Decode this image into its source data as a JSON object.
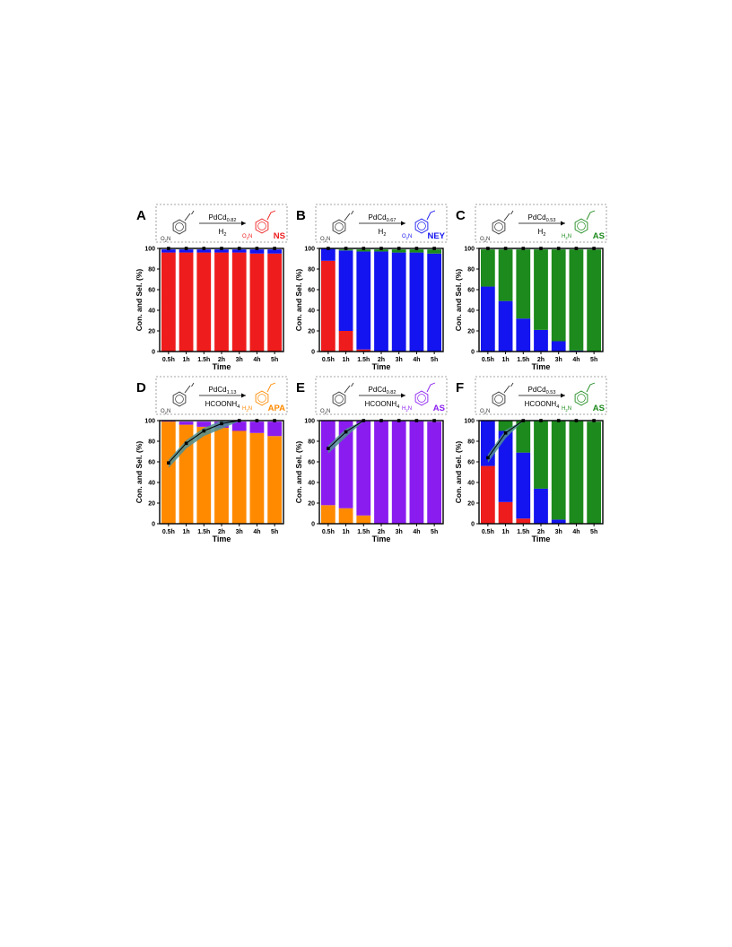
{
  "colors": {
    "red": "#ee1c1c",
    "blue": "#1414f0",
    "green": "#1c8a1c",
    "orange": "#ff8a00",
    "purple": "#8a1cf0",
    "band": "#4f8f92",
    "axis": "#000000",
    "box_border": "#888888"
  },
  "chart_data": [
    {
      "panel": "A",
      "type": "bar",
      "stacked": true,
      "categories": [
        "0.5h",
        "1h",
        "1.5h",
        "2h",
        "3h",
        "4h",
        "5h"
      ],
      "xlabel": "Time",
      "ylabel": "Con. and Sel. (%)",
      "ylim": [
        0,
        100
      ],
      "yticks": [
        "0",
        "20",
        "40",
        "60",
        "80",
        "100"
      ],
      "series": [
        {
          "color": "red",
          "values": [
            96,
            96,
            96,
            96,
            96,
            95,
            95
          ]
        },
        {
          "color": "blue",
          "values": [
            3,
            3,
            3,
            3,
            3,
            4,
            4
          ]
        }
      ],
      "conversion": [
        100,
        100,
        100,
        100,
        100,
        100,
        100
      ],
      "scheme": {
        "catalyst": "PdCd",
        "catalyst_sub": "0.82",
        "reagent": "H",
        "reagent_sub": "2",
        "reactant_label": "O",
        "reactant_label_tail": "N",
        "product_group": "O",
        "product_group_tail": "N",
        "product": "NS",
        "product_color": "red"
      }
    },
    {
      "panel": "B",
      "type": "bar",
      "stacked": true,
      "categories": [
        "0.5h",
        "1h",
        "1.5h",
        "2h",
        "3h",
        "4h",
        "5h"
      ],
      "xlabel": "Time",
      "ylabel": "Con. and Sel. (%)",
      "ylim": [
        0,
        100
      ],
      "yticks": [
        "0",
        "20",
        "40",
        "60",
        "80",
        "100"
      ],
      "series": [
        {
          "color": "red",
          "values": [
            88,
            20,
            2,
            0,
            0,
            0,
            0
          ]
        },
        {
          "color": "blue",
          "values": [
            12,
            78,
            95,
            97,
            96,
            96,
            95
          ]
        },
        {
          "color": "green",
          "values": [
            0,
            1,
            2,
            2,
            3,
            3,
            4
          ]
        }
      ],
      "conversion": [
        100,
        100,
        100,
        100,
        100,
        100,
        100
      ],
      "scheme": {
        "catalyst": "PdCd",
        "catalyst_sub": "0.67",
        "reagent": "H",
        "reagent_sub": "2",
        "reactant_label": "O",
        "reactant_label_tail": "N",
        "product_group": "O",
        "product_group_tail": "N",
        "product": "NEY",
        "product_color": "blue"
      }
    },
    {
      "panel": "C",
      "type": "bar",
      "stacked": true,
      "categories": [
        "0.5h",
        "1h",
        "1.5h",
        "2h",
        "3h",
        "4h",
        "5h"
      ],
      "xlabel": "Time",
      "ylabel": "Con. and Sel. (%)",
      "ylim": [
        0,
        100
      ],
      "yticks": [
        "0",
        "20",
        "40",
        "60",
        "80",
        "100"
      ],
      "series": [
        {
          "color": "blue",
          "values": [
            63,
            49,
            32,
            21,
            10,
            1,
            0
          ]
        },
        {
          "color": "green",
          "values": [
            36,
            50,
            67,
            78,
            89,
            98,
            99
          ]
        }
      ],
      "conversion": [
        100,
        100,
        100,
        100,
        100,
        100,
        100
      ],
      "scheme": {
        "catalyst": "PdCd",
        "catalyst_sub": "0.53",
        "reagent": "H",
        "reagent_sub": "2",
        "reactant_label": "O",
        "reactant_label_tail": "N",
        "product_group": "H",
        "product_group_tail": "N",
        "product": "AS",
        "product_color": "green"
      }
    },
    {
      "panel": "D",
      "type": "bar",
      "stacked": true,
      "categories": [
        "0.5h",
        "1h",
        "1.5h",
        "2h",
        "3h",
        "4h",
        "5h"
      ],
      "xlabel": "Time",
      "ylabel": "Con. and Sel. (%)",
      "ylim": [
        0,
        100
      ],
      "yticks": [
        "0",
        "20",
        "40",
        "60",
        "80",
        "100"
      ],
      "series": [
        {
          "color": "orange",
          "values": [
            99,
            96,
            94,
            93,
            90,
            88,
            85
          ]
        },
        {
          "color": "purple",
          "values": [
            1,
            3,
            5,
            6,
            9,
            11,
            14
          ]
        }
      ],
      "conversion": [
        59,
        78,
        90,
        97,
        100,
        100,
        100
      ],
      "scheme": {
        "catalyst": "PdCd",
        "catalyst_sub": "1.13",
        "reagent": "HCOONH",
        "reagent_sub": "4",
        "reactant_label": "O",
        "reactant_label_tail": "N",
        "product_group": "H",
        "product_group_tail": "N",
        "product": "APA",
        "product_color": "orange"
      }
    },
    {
      "panel": "E",
      "type": "bar",
      "stacked": true,
      "categories": [
        "0.5h",
        "1h",
        "1.5h",
        "2h",
        "3h",
        "4h",
        "5h"
      ],
      "xlabel": "Time",
      "ylabel": "Con. and Sel. (%)",
      "ylim": [
        0,
        100
      ],
      "yticks": [
        "0",
        "20",
        "40",
        "60",
        "80",
        "100"
      ],
      "series": [
        {
          "color": "orange",
          "values": [
            18,
            15,
            8,
            0,
            0,
            0,
            0
          ]
        },
        {
          "color": "purple",
          "values": [
            82,
            85,
            92,
            100,
            100,
            100,
            99
          ]
        }
      ],
      "conversion": [
        73,
        89,
        100,
        100,
        100,
        100,
        100
      ],
      "scheme": {
        "catalyst": "PdCd",
        "catalyst_sub": "0.82",
        "reagent": "HCOONH",
        "reagent_sub": "4",
        "reactant_label": "O",
        "reactant_label_tail": "N",
        "product_group": "H",
        "product_group_tail": "N",
        "product": "AS",
        "product_color": "purple"
      }
    },
    {
      "panel": "F",
      "type": "bar",
      "stacked": true,
      "categories": [
        "0.5h",
        "1h",
        "1.5h",
        "2h",
        "3h",
        "4h",
        "5h"
      ],
      "xlabel": "Time",
      "ylabel": "Con. and Sel. (%)",
      "ylim": [
        0,
        100
      ],
      "yticks": [
        "0",
        "20",
        "40",
        "60",
        "80",
        "100"
      ],
      "series": [
        {
          "color": "red",
          "values": [
            56,
            21,
            5,
            0,
            0,
            0,
            0
          ]
        },
        {
          "color": "blue",
          "values": [
            44,
            69,
            64,
            34,
            4,
            0,
            0
          ]
        },
        {
          "color": "green",
          "values": [
            0,
            10,
            31,
            66,
            96,
            100,
            99
          ]
        }
      ],
      "conversion": [
        64,
        88,
        100,
        100,
        100,
        100,
        100
      ],
      "scheme": {
        "catalyst": "PdCd",
        "catalyst_sub": "0.53",
        "reagent": "HCOONH",
        "reagent_sub": "4",
        "reactant_label": "O",
        "reactant_label_tail": "N",
        "product_group": "H",
        "product_group_tail": "N",
        "product": "AS",
        "product_color": "green"
      }
    }
  ]
}
